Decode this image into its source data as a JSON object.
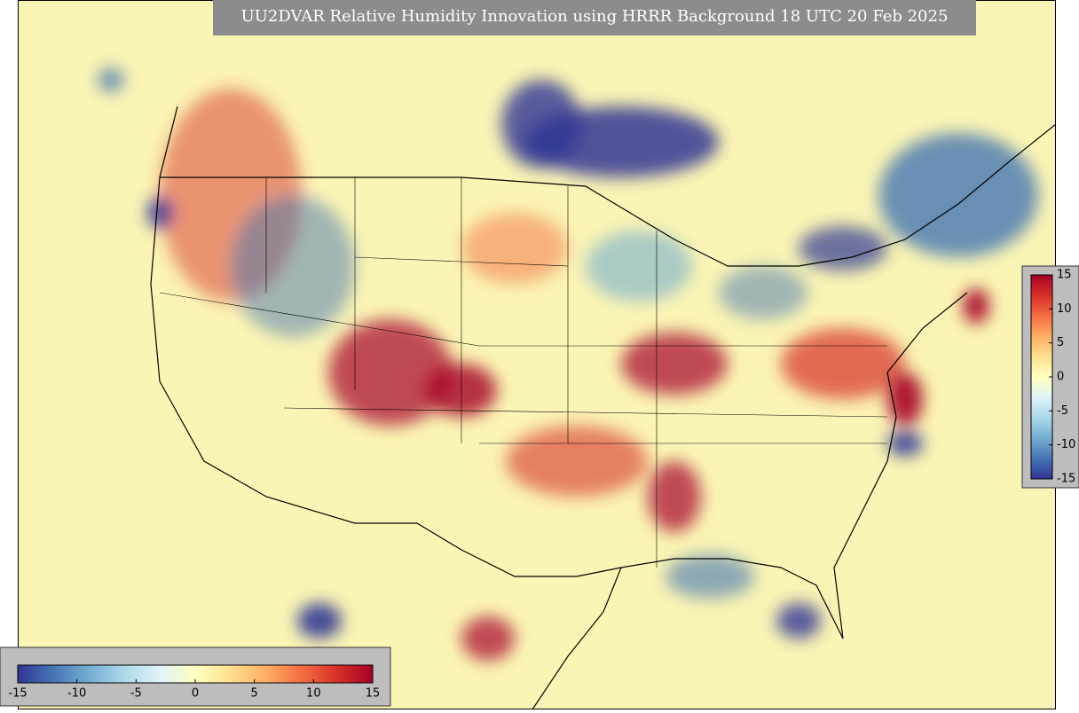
{
  "title": "UU2DVAR Relative Humidity Innovation using HRRR Background 18 UTC 20 Feb 2025",
  "colormap": [
    "#313695",
    "#4575b4",
    "#74add1",
    "#abd9e9",
    "#e0f3f8",
    "#ffffbf",
    "#fee090",
    "#fdae61",
    "#f46d43",
    "#d73027",
    "#a50026"
  ],
  "horizontal_colorbar": {
    "lim": [
      -15,
      15
    ],
    "ticks": [
      -15,
      -10,
      -5,
      0,
      5,
      10,
      15
    ]
  },
  "vertical_colorbar": {
    "lim": [
      -15,
      15
    ],
    "ticks": [
      -15,
      -10,
      -5,
      0,
      5,
      10,
      15
    ]
  }
}
